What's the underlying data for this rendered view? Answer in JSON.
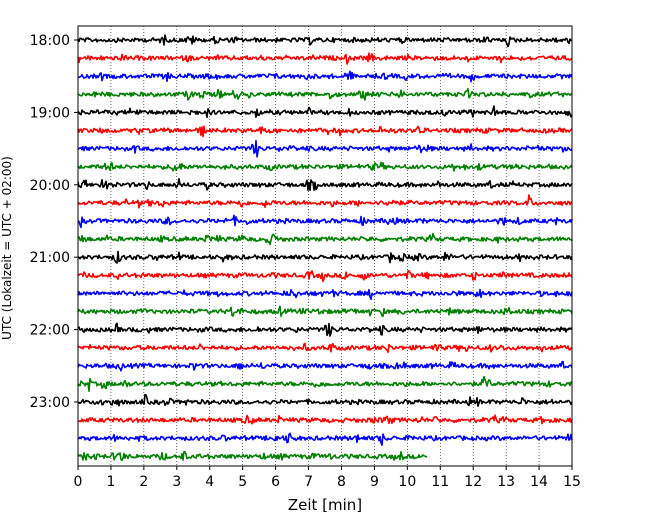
{
  "chart_data": {
    "type": "line",
    "title": "",
    "xlabel": "Zeit  [min]",
    "ylabel": "UTC (Lokalzeit = UTC + 02:00)",
    "xlim": [
      0,
      15
    ],
    "x_ticks": [
      0,
      1,
      2,
      3,
      4,
      5,
      6,
      7,
      8,
      9,
      10,
      11,
      12,
      13,
      14,
      15
    ],
    "x_tick_labels": [
      "0",
      "1",
      "2",
      "3",
      "4",
      "5",
      "6",
      "7",
      "8",
      "9",
      "10",
      "11",
      "12",
      "13",
      "14",
      "15"
    ],
    "y_tick_labels": [
      "18:00",
      "19:00",
      "20:00",
      "21:00",
      "22:00",
      "23:00"
    ],
    "grid": "vertical dotted lines at each minute",
    "color_cycle": [
      "#000000",
      "#ff0000",
      "#0000ff",
      "#008000"
    ],
    "traces": [
      {
        "start": "18:00",
        "color": "#000000",
        "x_end": 15
      },
      {
        "start": "18:15",
        "color": "#ff0000",
        "x_end": 15
      },
      {
        "start": "18:30",
        "color": "#0000ff",
        "x_end": 15
      },
      {
        "start": "18:45",
        "color": "#008000",
        "x_end": 15
      },
      {
        "start": "19:00",
        "color": "#000000",
        "x_end": 15
      },
      {
        "start": "19:15",
        "color": "#ff0000",
        "x_end": 15
      },
      {
        "start": "19:30",
        "color": "#0000ff",
        "x_end": 15
      },
      {
        "start": "19:45",
        "color": "#008000",
        "x_end": 15
      },
      {
        "start": "20:00",
        "color": "#000000",
        "x_end": 15
      },
      {
        "start": "20:15",
        "color": "#ff0000",
        "x_end": 15
      },
      {
        "start": "20:30",
        "color": "#0000ff",
        "x_end": 15
      },
      {
        "start": "20:45",
        "color": "#008000",
        "x_end": 15
      },
      {
        "start": "21:00",
        "color": "#000000",
        "x_end": 15
      },
      {
        "start": "21:15",
        "color": "#ff0000",
        "x_end": 15
      },
      {
        "start": "21:30",
        "color": "#0000ff",
        "x_end": 15
      },
      {
        "start": "21:45",
        "color": "#008000",
        "x_end": 15
      },
      {
        "start": "22:00",
        "color": "#000000",
        "x_end": 15
      },
      {
        "start": "22:15",
        "color": "#ff0000",
        "x_end": 15
      },
      {
        "start": "22:30",
        "color": "#0000ff",
        "x_end": 15
      },
      {
        "start": "22:45",
        "color": "#008000",
        "x_end": 15
      },
      {
        "start": "23:00",
        "color": "#000000",
        "x_end": 15
      },
      {
        "start": "23:15",
        "color": "#ff0000",
        "x_end": 15
      },
      {
        "start": "23:30",
        "color": "#0000ff",
        "x_end": 15
      },
      {
        "start": "23:45",
        "color": "#008000",
        "x_end": 10.6
      }
    ]
  }
}
